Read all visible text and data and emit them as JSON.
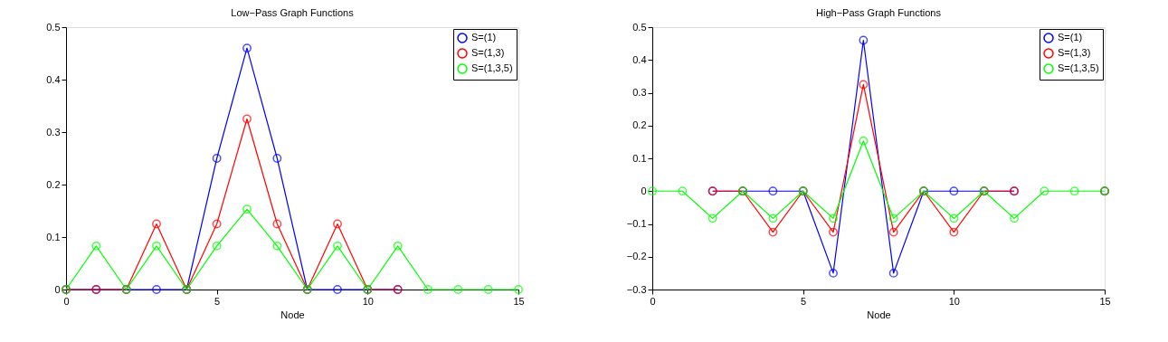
{
  "chart_data": [
    {
      "type": "line",
      "title": "Low−Pass Graph Functions",
      "xlabel": "Node",
      "x": [
        0,
        1,
        2,
        3,
        4,
        5,
        6,
        7,
        8,
        9,
        10,
        11,
        12,
        13,
        14,
        15
      ],
      "xlim": [
        0,
        15
      ],
      "xticks": [
        0,
        5,
        10,
        15
      ],
      "ylim": [
        0,
        0.5
      ],
      "yticks": [
        0,
        0.1,
        0.2,
        0.3,
        0.4,
        0.5
      ],
      "grid": false,
      "legend": "top right",
      "marker": "circle",
      "line_style": "solid",
      "series": [
        {
          "name": "S=(1)",
          "color": "#0000ff",
          "values": [
            0,
            0,
            0,
            0,
            0,
            0.25,
            0.46,
            0.25,
            0,
            0,
            0,
            0,
            null,
            null,
            null,
            null
          ]
        },
        {
          "name": "S=(1,3)",
          "color": "#ff0000",
          "values": [
            0,
            0,
            0,
            0.125,
            0,
            0.125,
            0.325,
            0.125,
            0,
            0.125,
            0,
            0,
            null,
            null,
            null,
            null
          ]
        },
        {
          "name": "S=(1,3,5)",
          "color": "#00ff00",
          "values": [
            0,
            0.083,
            0,
            0.083,
            0,
            0.083,
            0.153,
            0.083,
            0,
            0.083,
            0,
            0.083,
            0,
            0,
            0,
            0
          ]
        }
      ]
    },
    {
      "type": "line",
      "title": "High−Pass Graph Functions",
      "xlabel": "Node",
      "x": [
        0,
        1,
        2,
        3,
        4,
        5,
        6,
        7,
        8,
        9,
        10,
        11,
        12,
        13,
        14,
        15
      ],
      "xlim": [
        0,
        15
      ],
      "xticks": [
        0,
        5,
        10,
        15
      ],
      "ylim": [
        -0.3,
        0.5
      ],
      "yticks": [
        -0.3,
        -0.2,
        -0.1,
        0,
        0.1,
        0.2,
        0.3,
        0.4,
        0.5
      ],
      "grid": false,
      "legend": "top right",
      "marker": "circle",
      "line_style": "solid",
      "series": [
        {
          "name": "S=(1)",
          "color": "#0000ff",
          "values": [
            null,
            null,
            0,
            0,
            0,
            0,
            -0.25,
            0.46,
            -0.25,
            0,
            0,
            0,
            0,
            null,
            null,
            0
          ]
        },
        {
          "name": "S=(1,3)",
          "color": "#ff0000",
          "values": [
            null,
            null,
            0,
            0,
            -0.125,
            0,
            -0.125,
            0.325,
            -0.125,
            0,
            -0.125,
            0,
            0,
            null,
            null,
            0
          ]
        },
        {
          "name": "S=(1,3,5)",
          "color": "#00ff00",
          "values": [
            0,
            0,
            -0.083,
            0,
            -0.083,
            0,
            -0.083,
            0.153,
            -0.083,
            0,
            -0.083,
            0,
            -0.083,
            0,
            0,
            0
          ]
        }
      ]
    }
  ]
}
